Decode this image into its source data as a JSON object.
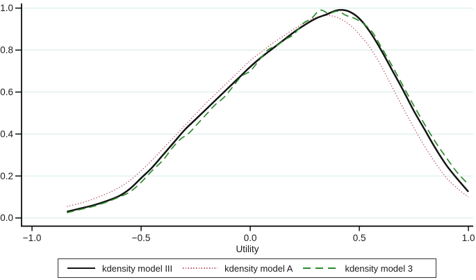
{
  "colors": {
    "background": "#ffffff",
    "axis": "#000000",
    "gridline": "#e3f3ee",
    "text": "#1a1a1a",
    "legend_border": "#333333",
    "series_model_iii": "#141414",
    "series_model_a": "#bb5566",
    "series_model_3": "#2e8b2e"
  },
  "chart_data": {
    "type": "line",
    "title": "",
    "xlabel": "Utility",
    "ylabel": "",
    "xlim": [
      -1.048,
      1.022
    ],
    "ylim": [
      -0.039,
      1.022
    ],
    "x_tick_values": [
      -1.0,
      -0.5,
      0.0,
      0.5,
      1.0
    ],
    "x_tick_labels": [
      "−1.0",
      "−0.5",
      "0.0",
      "0.5",
      "1.0"
    ],
    "y_tick_values": [
      0.0,
      0.2,
      0.4,
      0.6,
      0.8,
      1.0
    ],
    "y_tick_labels": [
      "0.0",
      "0.2",
      "0.4",
      "0.6",
      "0.8",
      "1.0"
    ],
    "grid": "horizontal-only",
    "legend_position": "bottom",
    "series": [
      {
        "name": "kdensity model III",
        "style": "solid",
        "color": "#141414",
        "width": 2.5,
        "points": [
          [
            -0.84,
            0.03
          ],
          [
            -0.78,
            0.045
          ],
          [
            -0.72,
            0.06
          ],
          [
            -0.66,
            0.08
          ],
          [
            -0.6,
            0.105
          ],
          [
            -0.55,
            0.14
          ],
          [
            -0.5,
            0.19
          ],
          [
            -0.45,
            0.24
          ],
          [
            -0.4,
            0.3
          ],
          [
            -0.35,
            0.36
          ],
          [
            -0.3,
            0.42
          ],
          [
            -0.25,
            0.47
          ],
          [
            -0.2,
            0.52
          ],
          [
            -0.15,
            0.57
          ],
          [
            -0.1,
            0.62
          ],
          [
            -0.05,
            0.67
          ],
          [
            0.0,
            0.72
          ],
          [
            0.05,
            0.765
          ],
          [
            0.1,
            0.805
          ],
          [
            0.15,
            0.845
          ],
          [
            0.2,
            0.885
          ],
          [
            0.25,
            0.92
          ],
          [
            0.3,
            0.95
          ],
          [
            0.35,
            0.97
          ],
          [
            0.4,
            0.99
          ],
          [
            0.45,
            0.985
          ],
          [
            0.5,
            0.95
          ],
          [
            0.55,
            0.885
          ],
          [
            0.6,
            0.8
          ],
          [
            0.65,
            0.705
          ],
          [
            0.7,
            0.61
          ],
          [
            0.75,
            0.51
          ],
          [
            0.8,
            0.42
          ],
          [
            0.85,
            0.33
          ],
          [
            0.9,
            0.25
          ],
          [
            0.95,
            0.185
          ],
          [
            1.0,
            0.125
          ]
        ]
      },
      {
        "name": "kdensity model A",
        "style": "dotted",
        "color": "#bb5566",
        "width": 1.4,
        "points": [
          [
            -0.84,
            0.055
          ],
          [
            -0.78,
            0.07
          ],
          [
            -0.72,
            0.09
          ],
          [
            -0.66,
            0.115
          ],
          [
            -0.6,
            0.145
          ],
          [
            -0.55,
            0.18
          ],
          [
            -0.5,
            0.225
          ],
          [
            -0.45,
            0.275
          ],
          [
            -0.4,
            0.33
          ],
          [
            -0.35,
            0.385
          ],
          [
            -0.3,
            0.44
          ],
          [
            -0.25,
            0.495
          ],
          [
            -0.2,
            0.55
          ],
          [
            -0.15,
            0.6
          ],
          [
            -0.1,
            0.65
          ],
          [
            -0.05,
            0.7
          ],
          [
            0.0,
            0.75
          ],
          [
            0.05,
            0.79
          ],
          [
            0.1,
            0.83
          ],
          [
            0.15,
            0.865
          ],
          [
            0.2,
            0.9
          ],
          [
            0.25,
            0.93
          ],
          [
            0.3,
            0.955
          ],
          [
            0.35,
            0.965
          ],
          [
            0.4,
            0.955
          ],
          [
            0.45,
            0.925
          ],
          [
            0.5,
            0.875
          ],
          [
            0.55,
            0.81
          ],
          [
            0.6,
            0.725
          ],
          [
            0.65,
            0.625
          ],
          [
            0.7,
            0.525
          ],
          [
            0.75,
            0.43
          ],
          [
            0.8,
            0.34
          ],
          [
            0.85,
            0.26
          ],
          [
            0.9,
            0.19
          ],
          [
            0.95,
            0.14
          ],
          [
            1.0,
            0.1
          ]
        ]
      },
      {
        "name": "kdensity model 3",
        "style": "dashed",
        "color": "#2e8b2e",
        "width": 1.7,
        "points": [
          [
            -0.84,
            0.025
          ],
          [
            -0.78,
            0.04
          ],
          [
            -0.72,
            0.055
          ],
          [
            -0.66,
            0.075
          ],
          [
            -0.6,
            0.1
          ],
          [
            -0.55,
            0.125
          ],
          [
            -0.5,
            0.17
          ],
          [
            -0.45,
            0.225
          ],
          [
            -0.4,
            0.275
          ],
          [
            -0.36,
            0.33
          ],
          [
            -0.32,
            0.375
          ],
          [
            -0.28,
            0.405
          ],
          [
            -0.24,
            0.45
          ],
          [
            -0.2,
            0.495
          ],
          [
            -0.16,
            0.54
          ],
          [
            -0.12,
            0.575
          ],
          [
            -0.08,
            0.625
          ],
          [
            -0.04,
            0.675
          ],
          [
            0.0,
            0.7
          ],
          [
            0.04,
            0.75
          ],
          [
            0.08,
            0.8
          ],
          [
            0.12,
            0.82
          ],
          [
            0.16,
            0.85
          ],
          [
            0.2,
            0.875
          ],
          [
            0.24,
            0.925
          ],
          [
            0.28,
            0.95
          ],
          [
            0.32,
            0.99
          ],
          [
            0.36,
            0.975
          ],
          [
            0.4,
            0.985
          ],
          [
            0.44,
            0.965
          ],
          [
            0.48,
            0.95
          ],
          [
            0.52,
            0.925
          ],
          [
            0.56,
            0.885
          ],
          [
            0.6,
            0.815
          ],
          [
            0.65,
            0.725
          ],
          [
            0.7,
            0.63
          ],
          [
            0.75,
            0.535
          ],
          [
            0.8,
            0.445
          ],
          [
            0.85,
            0.36
          ],
          [
            0.9,
            0.285
          ],
          [
            0.95,
            0.215
          ],
          [
            1.0,
            0.16
          ]
        ]
      }
    ]
  },
  "legend": {
    "items": [
      {
        "label": "kdensity model III"
      },
      {
        "label": "kdensity model A"
      },
      {
        "label": "kdensity model 3"
      }
    ]
  }
}
